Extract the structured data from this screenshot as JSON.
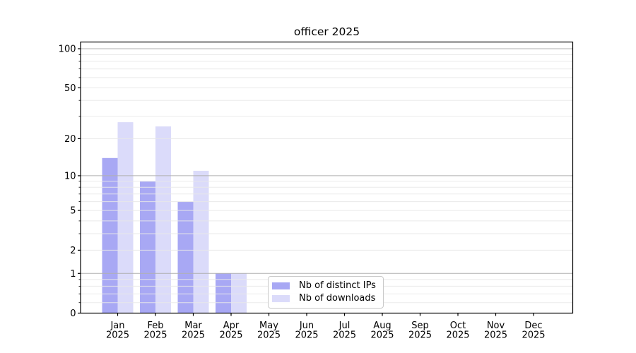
{
  "chart_data": {
    "type": "bar",
    "title": "officer 2025",
    "categories": [
      {
        "month": "Jan",
        "year": "2025"
      },
      {
        "month": "Feb",
        "year": "2025"
      },
      {
        "month": "Mar",
        "year": "2025"
      },
      {
        "month": "Apr",
        "year": "2025"
      },
      {
        "month": "May",
        "year": "2025"
      },
      {
        "month": "Jun",
        "year": "2025"
      },
      {
        "month": "Jul",
        "year": "2025"
      },
      {
        "month": "Aug",
        "year": "2025"
      },
      {
        "month": "Sep",
        "year": "2025"
      },
      {
        "month": "Oct",
        "year": "2025"
      },
      {
        "month": "Nov",
        "year": "2025"
      },
      {
        "month": "Dec",
        "year": "2025"
      }
    ],
    "series": [
      {
        "name": "Nb of distinct IPs",
        "color": "#a8a8f4",
        "values": [
          14,
          9,
          6,
          1,
          0,
          0,
          0,
          0,
          0,
          0,
          0,
          0
        ]
      },
      {
        "name": "Nb of downloads",
        "color": "#dbdbfa",
        "values": [
          27,
          25,
          11,
          1,
          0,
          0,
          0,
          0,
          0,
          0,
          0,
          0
        ]
      }
    ],
    "y_axis": {
      "scale": "log1p",
      "tick_values": [
        0,
        1,
        2,
        5,
        10,
        20,
        50,
        100
      ],
      "major_grid_values": [
        1,
        10,
        100
      ],
      "minor_grid_values": [
        0.2,
        0.4,
        0.6,
        0.8,
        2,
        3,
        4,
        5,
        6,
        7,
        8,
        9,
        20,
        30,
        40,
        50,
        60,
        70,
        80,
        90
      ],
      "ylim": [
        0,
        112
      ]
    },
    "xlabel": "",
    "ylabel": "",
    "grid": "on",
    "legend_position": "lower center",
    "colors": {
      "major_grid": "#b0b0b0",
      "minor_grid": "#e8e8e8",
      "axis": "#000000",
      "background": "#ffffff"
    }
  }
}
